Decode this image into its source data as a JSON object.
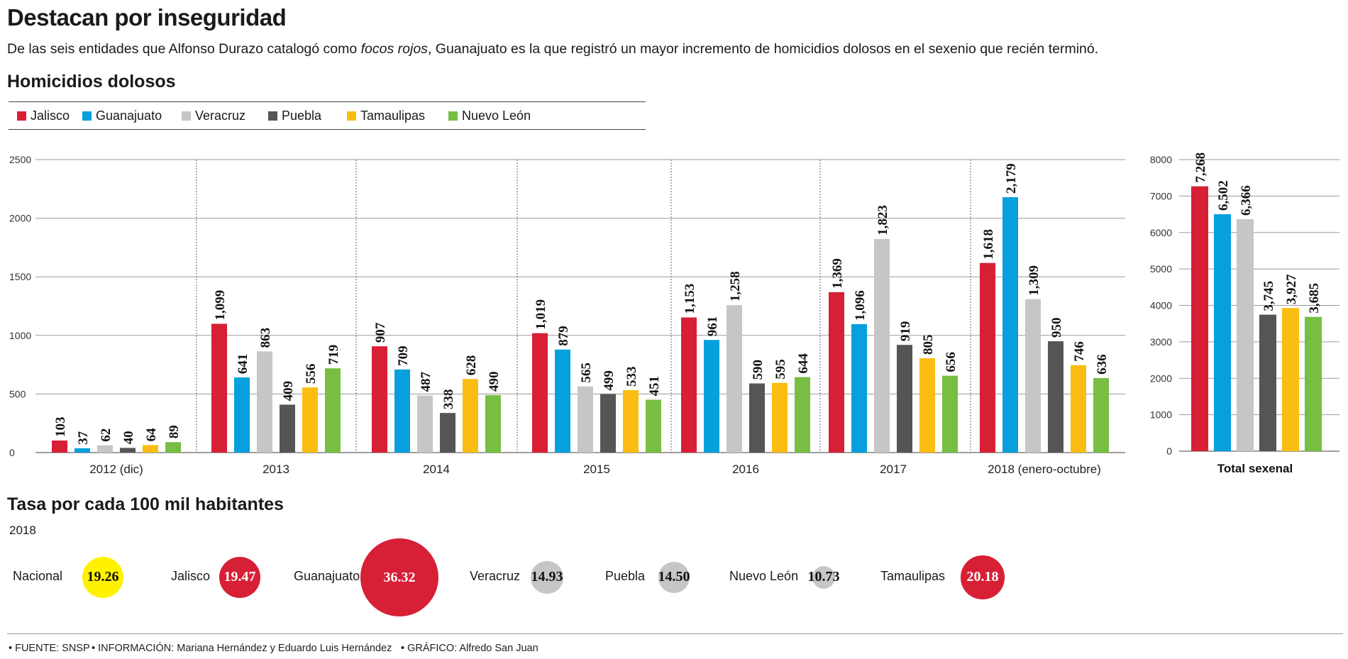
{
  "header": {
    "title": "Destacan por inseguridad",
    "subtitle_before": "De las seis entidades que Alfonso Durazo catalogó como ",
    "subtitle_italic": "focos rojos",
    "subtitle_after": ", Guanajuato es la que registró un mayor incremento de homicidios dolosos en el sexenio que recién terminó.",
    "section_homicides": "Homicidios dolosos",
    "section_rates": "Tasa por cada 100 mil habitantes"
  },
  "legend": [
    {
      "name": "Jalisco",
      "color": "#d71f36"
    },
    {
      "name": "Guanajuato",
      "color": "#06a0dc"
    },
    {
      "name": "Veracruz",
      "color": "#c6c6c6"
    },
    {
      "name": "Puebla",
      "color": "#555555"
    },
    {
      "name": "Tamaulipas",
      "color": "#fbbd11"
    },
    {
      "name": "Nuevo León",
      "color": "#77be43"
    }
  ],
  "chart_data": [
    {
      "type": "bar",
      "categories": [
        "2012 (dic)",
        "2013",
        "2014",
        "2015",
        "2016",
        "2017",
        "2018 (enero-octubre)"
      ],
      "ylim": [
        0,
        2500
      ],
      "yticks": [
        "0",
        "500",
        "1000",
        "1500",
        "2000",
        "2500"
      ],
      "grid": true,
      "legend_position": "top-left",
      "series": [
        {
          "name": "Jalisco",
          "values": [
            103,
            1099,
            907,
            1019,
            1153,
            1369,
            1618
          ],
          "labels": [
            "103",
            "1,099",
            "907",
            "1,019",
            "1,153",
            "1,369",
            "1,618"
          ]
        },
        {
          "name": "Guanajuato",
          "values": [
            37,
            641,
            709,
            879,
            961,
            1096,
            2179
          ],
          "labels": [
            "37",
            "641",
            "709",
            "879",
            "961",
            "1,096",
            "2,179"
          ]
        },
        {
          "name": "Veracruz",
          "values": [
            62,
            863,
            487,
            565,
            1258,
            1823,
            1309
          ],
          "labels": [
            "62",
            "863",
            "487",
            "565",
            "1,258",
            "1,823",
            "1,309"
          ]
        },
        {
          "name": "Puebla",
          "values": [
            40,
            409,
            338,
            499,
            590,
            919,
            950
          ],
          "labels": [
            "40",
            "409",
            "338",
            "499",
            "590",
            "919",
            "950"
          ]
        },
        {
          "name": "Tamaulipas",
          "values": [
            64,
            556,
            628,
            533,
            595,
            805,
            746
          ],
          "labels": [
            "64",
            "556",
            "628",
            "533",
            "595",
            "805",
            "746"
          ]
        },
        {
          "name": "Nuevo León",
          "values": [
            89,
            719,
            490,
            451,
            644,
            656,
            636
          ],
          "labels": [
            "89",
            "719",
            "490",
            "451",
            "644",
            "656",
            "636"
          ]
        }
      ]
    },
    {
      "type": "bar",
      "title": "Total sexenal",
      "categories": [
        "Jalisco",
        "Guanajuato",
        "Veracruz",
        "Puebla",
        "Tamaulipas",
        "Nuevo León"
      ],
      "values": [
        7268,
        6502,
        6366,
        3745,
        3927,
        3685
      ],
      "labels": [
        "7,268",
        "6,502",
        "6,366",
        "3,745",
        "3,927",
        "3,685"
      ],
      "ylim": [
        0,
        8000
      ],
      "yticks": [
        "0",
        "1000",
        "2000",
        "3000",
        "4000",
        "5000",
        "6000",
        "7000",
        "8000"
      ],
      "grid": true
    }
  ],
  "rates": {
    "year": "2018",
    "items": [
      {
        "name": "Nacional",
        "value": 19.26,
        "label": "19.26",
        "color": "#fff200"
      },
      {
        "name": "Jalisco",
        "value": 19.47,
        "label": "19.47",
        "color": "#d71f36"
      },
      {
        "name": "Guanajuato",
        "value": 36.32,
        "label": "36.32",
        "color": "#d71f36"
      },
      {
        "name": "Veracruz",
        "value": 14.93,
        "label": "14.93",
        "color": "#c6c6c6"
      },
      {
        "name": "Puebla",
        "value": 14.5,
        "label": "14.50",
        "color": "#c6c6c6"
      },
      {
        "name": "Nuevo León",
        "value": 10.73,
        "label": "10.73",
        "color": "#c6c6c6"
      },
      {
        "name": "Tamaulipas",
        "value": 20.18,
        "label": "20.18",
        "color": "#d71f36"
      }
    ]
  },
  "footer": {
    "source": "• FUENTE: SNSP",
    "info": "• INFORMACIÓN: Mariana Hernández y Eduardo Luis Hernández",
    "graphic": "• GRÁFICO: Alfredo San Juan"
  }
}
